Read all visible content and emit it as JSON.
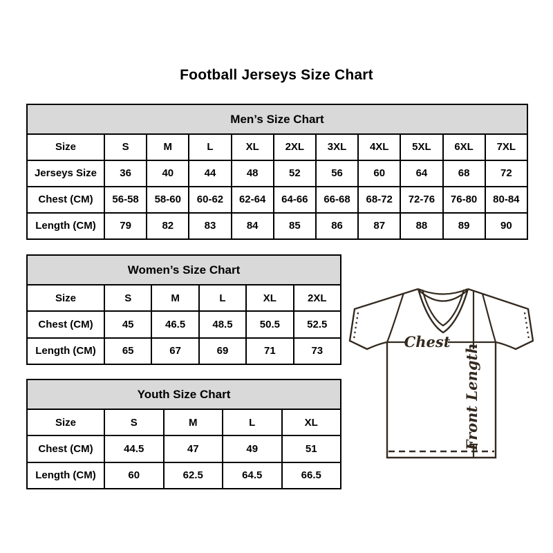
{
  "title": "Football Jerseys Size Chart",
  "tables": [
    {
      "header": "Men’s Size Chart",
      "rows": [
        {
          "label": "Size",
          "values": [
            "S",
            "M",
            "L",
            "XL",
            "2XL",
            "3XL",
            "4XL",
            "5XL",
            "6XL",
            "7XL"
          ]
        },
        {
          "label": "Jerseys Size",
          "values": [
            "36",
            "40",
            "44",
            "48",
            "52",
            "56",
            "60",
            "64",
            "68",
            "72"
          ]
        },
        {
          "label": "Chest (CM)",
          "values": [
            "56-58",
            "58-60",
            "60-62",
            "62-64",
            "64-66",
            "66-68",
            "68-72",
            "72-76",
            "76-80",
            "80-84"
          ]
        },
        {
          "label": "Length (CM)",
          "values": [
            "79",
            "82",
            "83",
            "84",
            "85",
            "86",
            "87",
            "88",
            "89",
            "90"
          ]
        }
      ]
    },
    {
      "header": "Women’s Size Chart",
      "rows": [
        {
          "label": "Size",
          "values": [
            "S",
            "M",
            "L",
            "XL",
            "2XL"
          ]
        },
        {
          "label": "Chest (CM)",
          "values": [
            "45",
            "46.5",
            "48.5",
            "50.5",
            "52.5"
          ]
        },
        {
          "label": "Length (CM)",
          "values": [
            "65",
            "67",
            "69",
            "71",
            "73"
          ]
        }
      ]
    },
    {
      "header": "Youth Size Chart",
      "rows": [
        {
          "label": "Size",
          "values": [
            "S",
            "M",
            "L",
            "XL"
          ]
        },
        {
          "label": "Chest (CM)",
          "values": [
            "44.5",
            "47",
            "49",
            "51"
          ]
        },
        {
          "label": "Length (CM)",
          "values": [
            "60",
            "62.5",
            "64.5",
            "66.5"
          ]
        }
      ]
    }
  ],
  "diagram": {
    "chest_label": "Chest",
    "front_length_label": "Front Length"
  },
  "colors": {
    "table_header_bg": "#d9d9d9",
    "table_border": "#000000",
    "text": "#000000",
    "diagram_stroke": "#33291f"
  }
}
